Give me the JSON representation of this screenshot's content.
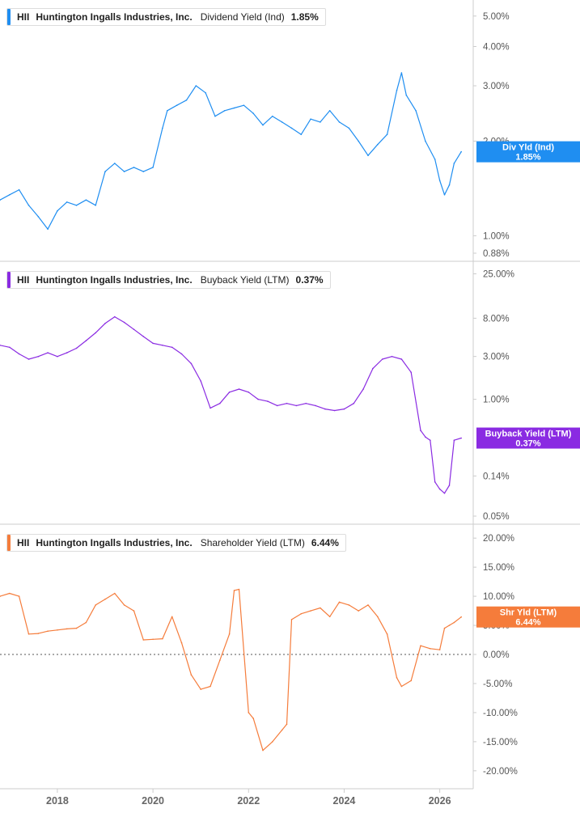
{
  "colors": {
    "dividend": "#1f8ef1",
    "buyback": "#8a2be2",
    "shareholder": "#f57c3b",
    "axis": "#cccccc",
    "zero": "#555555"
  },
  "x_ticks": [
    "2018",
    "2020",
    "2022",
    "2024",
    "2026"
  ],
  "chart_data": [
    {
      "type": "line",
      "title": "",
      "legend": {
        "ticker": "HII",
        "company": "Huntington Ingalls Industries, Inc.",
        "metric": "Dividend Yield (Ind)",
        "value": "1.85%"
      },
      "badge": {
        "label": "Div Yld (Ind)",
        "value": "1.85%"
      },
      "yscale": "log",
      "ylim": [
        0.88,
        5.3
      ],
      "y_ticks": [
        "5.00%",
        "4.00%",
        "3.00%",
        "2.00%",
        "1.00%",
        "0.88%"
      ],
      "y_tick_values": [
        5.0,
        4.0,
        3.0,
        2.0,
        1.0,
        0.88
      ],
      "series": [
        {
          "x": [
            2016.8,
            2017.0,
            2017.2,
            2017.4,
            2017.6,
            2017.8,
            2018.0,
            2018.2,
            2018.4,
            2018.6,
            2018.8,
            2019.0,
            2019.2,
            2019.4,
            2019.6,
            2019.8,
            2020.0,
            2020.2,
            2020.3,
            2020.5,
            2020.7,
            2020.9,
            2021.1,
            2021.3,
            2021.5,
            2021.7,
            2021.9,
            2022.1,
            2022.3,
            2022.5,
            2022.7,
            2022.9,
            2023.1,
            2023.3,
            2023.5,
            2023.7,
            2023.9,
            2024.1,
            2024.3,
            2024.5,
            2024.7,
            2024.9,
            2025.1,
            2025.2,
            2025.3,
            2025.5,
            2025.7,
            2025.9,
            2026.0,
            2026.1,
            2026.2,
            2026.3,
            2026.45
          ],
          "values": [
            1.3,
            1.35,
            1.4,
            1.25,
            1.15,
            1.05,
            1.2,
            1.28,
            1.25,
            1.3,
            1.25,
            1.6,
            1.7,
            1.6,
            1.65,
            1.6,
            1.65,
            2.2,
            2.5,
            2.6,
            2.7,
            3.0,
            2.85,
            2.4,
            2.5,
            2.55,
            2.6,
            2.45,
            2.25,
            2.4,
            2.3,
            2.2,
            2.1,
            2.35,
            2.3,
            2.5,
            2.3,
            2.2,
            2.0,
            1.8,
            1.95,
            2.1,
            2.9,
            3.3,
            2.8,
            2.5,
            2.0,
            1.75,
            1.5,
            1.35,
            1.45,
            1.7,
            1.85
          ]
        }
      ]
    },
    {
      "type": "line",
      "title": "",
      "legend": {
        "ticker": "HII",
        "company": "Huntington Ingalls Industries, Inc.",
        "metric": "Buyback Yield (LTM)",
        "value": "0.37%"
      },
      "badge": {
        "label": "Buyback Yield (LTM)",
        "value": "0.37%"
      },
      "yscale": "log",
      "ylim": [
        0.05,
        28
      ],
      "y_ticks": [
        "25.00%",
        "8.00%",
        "3.00%",
        "1.00%",
        "0.14%",
        "0.05%"
      ],
      "y_tick_values": [
        25.0,
        8.0,
        3.0,
        1.0,
        0.14,
        0.05
      ],
      "series": [
        {
          "x": [
            2016.8,
            2017.0,
            2017.2,
            2017.4,
            2017.6,
            2017.8,
            2018.0,
            2018.2,
            2018.4,
            2018.6,
            2018.8,
            2019.0,
            2019.2,
            2019.4,
            2019.6,
            2019.8,
            2020.0,
            2020.2,
            2020.4,
            2020.6,
            2020.8,
            2021.0,
            2021.2,
            2021.4,
            2021.6,
            2021.8,
            2022.0,
            2022.2,
            2022.4,
            2022.6,
            2022.8,
            2023.0,
            2023.2,
            2023.4,
            2023.6,
            2023.8,
            2024.0,
            2024.2,
            2024.4,
            2024.6,
            2024.8,
            2025.0,
            2025.2,
            2025.4,
            2025.6,
            2025.7,
            2025.8,
            2025.9,
            2026.0,
            2026.1,
            2026.2,
            2026.3,
            2026.45
          ],
          "values": [
            4.0,
            3.8,
            3.2,
            2.8,
            3.0,
            3.3,
            3.0,
            3.3,
            3.7,
            4.5,
            5.5,
            7.0,
            8.3,
            7.2,
            6.0,
            5.0,
            4.2,
            4.0,
            3.8,
            3.2,
            2.5,
            1.6,
            0.8,
            0.9,
            1.2,
            1.3,
            1.2,
            1.0,
            0.95,
            0.85,
            0.9,
            0.85,
            0.9,
            0.85,
            0.78,
            0.75,
            0.78,
            0.9,
            1.3,
            2.2,
            2.8,
            3.0,
            2.8,
            2.0,
            0.45,
            0.38,
            0.35,
            0.12,
            0.1,
            0.09,
            0.11,
            0.35,
            0.37
          ]
        }
      ]
    },
    {
      "type": "line",
      "title": "",
      "legend": {
        "ticker": "HII",
        "company": "Huntington Ingalls Industries, Inc.",
        "metric": "Shareholder Yield (LTM)",
        "value": "6.44%"
      },
      "badge": {
        "label": "Shr Yld (LTM)",
        "value": "6.44%"
      },
      "yscale": "linear",
      "ylim": [
        -21,
        21
      ],
      "y_ticks": [
        "20.00%",
        "15.00%",
        "10.00%",
        "5.00%",
        "0.00%",
        "-5.00%",
        "-10.00%",
        "-15.00%",
        "-20.00%"
      ],
      "y_tick_values": [
        20,
        15,
        10,
        5,
        0,
        -5,
        -10,
        -15,
        -20
      ],
      "series": [
        {
          "x": [
            2016.8,
            2017.0,
            2017.2,
            2017.4,
            2017.6,
            2017.8,
            2018.0,
            2018.2,
            2018.4,
            2018.6,
            2018.8,
            2019.0,
            2019.2,
            2019.4,
            2019.6,
            2019.8,
            2020.0,
            2020.2,
            2020.4,
            2020.6,
            2020.8,
            2021.0,
            2021.2,
            2021.4,
            2021.6,
            2021.7,
            2021.8,
            2022.0,
            2022.1,
            2022.3,
            2022.5,
            2022.7,
            2022.8,
            2022.9,
            2023.1,
            2023.3,
            2023.5,
            2023.7,
            2023.9,
            2024.1,
            2024.3,
            2024.5,
            2024.7,
            2024.9,
            2025.1,
            2025.2,
            2025.4,
            2025.6,
            2025.8,
            2026.0,
            2026.1,
            2026.2,
            2026.3,
            2026.45
          ],
          "values": [
            10.0,
            10.5,
            10.0,
            3.5,
            3.6,
            4.0,
            4.2,
            4.4,
            4.5,
            5.5,
            8.5,
            9.5,
            10.5,
            8.5,
            7.5,
            2.5,
            2.6,
            2.7,
            6.5,
            2.0,
            -3.5,
            -6.0,
            -5.5,
            -1.0,
            3.5,
            11.0,
            11.2,
            -10.0,
            -11.0,
            -16.5,
            -15.0,
            -13.0,
            -12.0,
            6.0,
            7.0,
            7.5,
            8.0,
            6.5,
            9.0,
            8.5,
            7.5,
            8.5,
            6.5,
            3.5,
            -4.0,
            -5.5,
            -4.5,
            1.5,
            1.0,
            0.8,
            4.5,
            5.0,
            5.5,
            6.44
          ]
        }
      ]
    }
  ]
}
